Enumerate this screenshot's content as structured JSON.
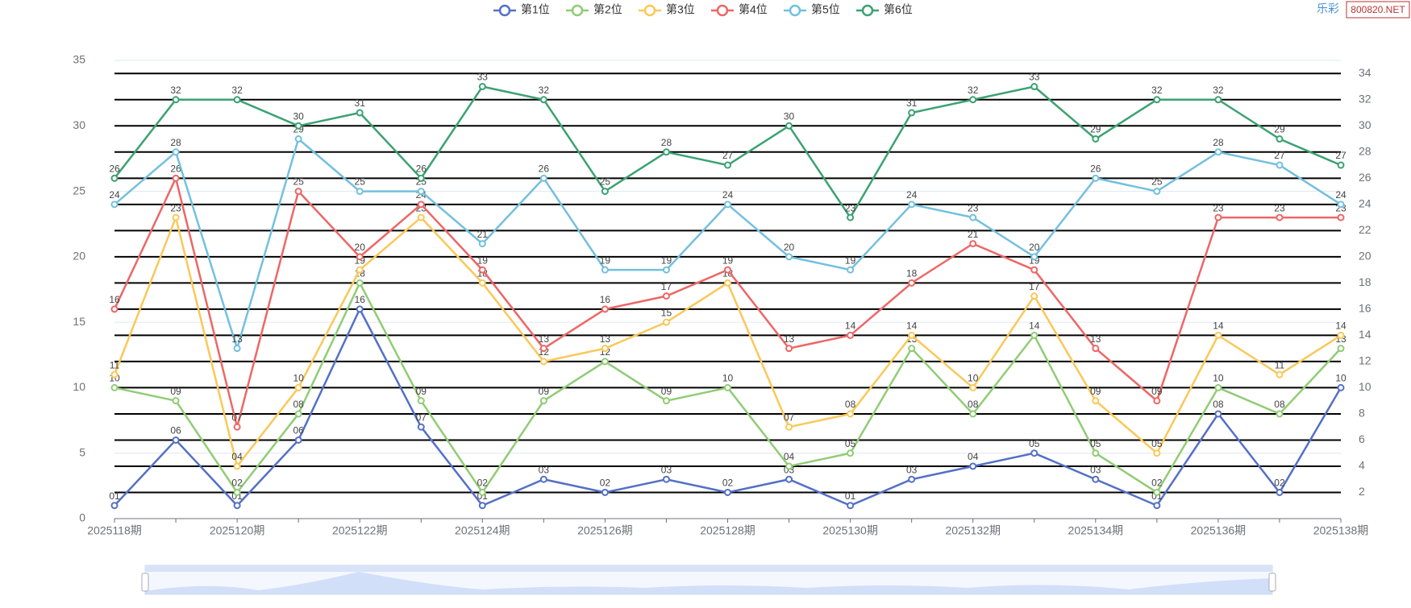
{
  "chart_data": {
    "type": "line",
    "categories": [
      "2025118期",
      null,
      "2025120期",
      null,
      "2025122期",
      null,
      "2025124期",
      null,
      "2025126期",
      null,
      "2025128期",
      null,
      "2025130期",
      null,
      "2025132期",
      null,
      "2025134期",
      null,
      "2025136期",
      null,
      "2025138期"
    ],
    "series": [
      {
        "name": "第1位",
        "color": "#5470c6",
        "values": [
          1,
          6,
          1,
          6,
          16,
          7,
          1,
          3,
          2,
          3,
          2,
          3,
          1,
          3,
          4,
          5,
          3,
          1,
          8,
          2,
          10
        ],
        "value_labels": [
          "01",
          "06",
          "01",
          "06",
          "16",
          "07",
          "01",
          "03",
          "02",
          "03",
          "02",
          "03",
          "01",
          "03",
          "04",
          "05",
          "03",
          "01",
          "08",
          "02",
          "10"
        ]
      },
      {
        "name": "第2位",
        "color": "#91cc75",
        "values": [
          10,
          9,
          2,
          8,
          18,
          9,
          2,
          9,
          12,
          9,
          10,
          4,
          5,
          13,
          8,
          14,
          5,
          2,
          10,
          8,
          13
        ],
        "value_labels": [
          "10",
          "09",
          "02",
          "08",
          "18",
          "09",
          "02",
          "09",
          "12",
          "09",
          "10",
          "04",
          "05",
          "13",
          "08",
          "14",
          "05",
          "02",
          "10",
          "08",
          "13"
        ]
      },
      {
        "name": "第3位",
        "color": "#fac858",
        "values": [
          11,
          23,
          4,
          10,
          19,
          23,
          18,
          12,
          13,
          15,
          18,
          7,
          8,
          14,
          10,
          17,
          9,
          5,
          14,
          11,
          14
        ],
        "value_labels": [
          "11",
          "23",
          "04",
          "10",
          "19",
          "23",
          "18",
          "12",
          "13",
          "15",
          "18",
          "07",
          "08",
          "14",
          "10",
          "17",
          "09",
          "05",
          "14",
          "11",
          "14"
        ]
      },
      {
        "name": "第4位",
        "color": "#ee6666",
        "values": [
          16,
          26,
          7,
          25,
          20,
          24,
          19,
          13,
          16,
          17,
          19,
          13,
          14,
          18,
          21,
          19,
          13,
          9,
          23,
          23,
          23
        ],
        "value_labels": [
          "16",
          "26",
          "07",
          "25",
          "20",
          "24",
          "19",
          "13",
          "16",
          "17",
          "19",
          "13",
          "14",
          "18",
          "21",
          "19",
          "13",
          "09",
          "23",
          "23",
          "23"
        ]
      },
      {
        "name": "第5位",
        "color": "#73c0de",
        "values": [
          24,
          28,
          13,
          29,
          25,
          25,
          21,
          26,
          19,
          19,
          24,
          20,
          19,
          24,
          23,
          20,
          26,
          25,
          28,
          27,
          24
        ]
      },
      {
        "name": "第6位",
        "color": "#3ba272",
        "values": [
          26,
          32,
          32,
          30,
          31,
          26,
          33,
          32,
          25,
          28,
          27,
          30,
          23,
          31,
          32,
          33,
          29,
          32,
          32,
          29,
          27
        ]
      }
    ],
    "ylim": [
      0,
      35
    ],
    "yticks": [
      0,
      5,
      10,
      15,
      20,
      25,
      30,
      35
    ],
    "y2lim": [
      0,
      35
    ],
    "y2ticks": [
      2,
      4,
      6,
      8,
      10,
      12,
      14,
      16,
      18,
      20,
      22,
      24,
      26,
      28,
      30,
      32,
      34
    ],
    "grid": true,
    "legend": "top",
    "watermark": "乐彩",
    "watermark_badge": "800820.NET"
  }
}
